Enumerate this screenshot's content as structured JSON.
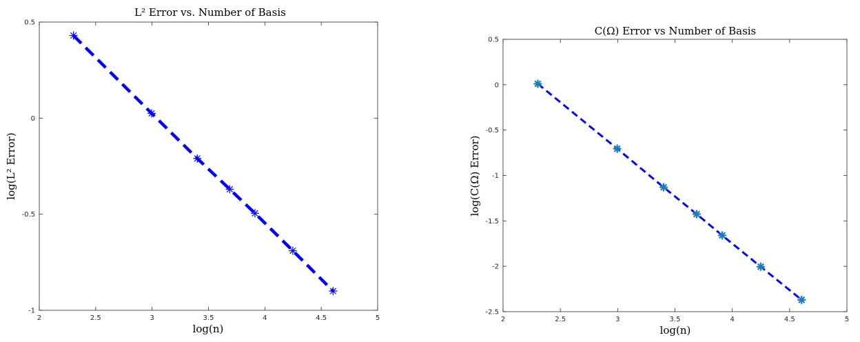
{
  "chart_data": [
    {
      "type": "line",
      "title": "L² Error vs. Number of Basis",
      "xlabel": "log(n)",
      "ylabel": "log(L² Error)",
      "xlim": [
        2,
        5
      ],
      "ylim": [
        -1,
        0.5
      ],
      "x_ticks": [
        "2",
        "2.5",
        "3",
        "3.5",
        "4",
        "4.5",
        "5"
      ],
      "y_ticks": [
        "0.5",
        "0",
        "-0.5",
        "-1"
      ],
      "grid": false,
      "series": [
        {
          "line_style": "dashed",
          "marker": "asterisk",
          "color": "#0000ff",
          "marker_color": "#0000ff",
          "x": [
            2.303,
            2.996,
            3.401,
            3.689,
            3.912,
            4.248,
            4.605
          ],
          "y": [
            0.43,
            0.025,
            -0.21,
            -0.37,
            -0.495,
            -0.69,
            -0.9
          ]
        }
      ]
    },
    {
      "type": "line",
      "title": "C(Ω) Error vs Number of Basis",
      "xlabel": "log(n)",
      "ylabel": "log(C(Ω) Error)",
      "xlim": [
        2,
        5
      ],
      "ylim": [
        -2.5,
        0.5
      ],
      "x_ticks": [
        "2",
        "2.5",
        "3",
        "3.5",
        "4",
        "4.5",
        "5"
      ],
      "y_ticks": [
        "0.5",
        "0",
        "-0.5",
        "-1",
        "-1.5",
        "-2",
        "-2.5"
      ],
      "grid": false,
      "series": [
        {
          "line_style": "dashed",
          "marker": "asterisk",
          "color": "#0000ff",
          "marker_color": "#1a7fb5",
          "x": [
            2.303,
            2.996,
            3.401,
            3.689,
            3.912,
            4.248,
            4.605
          ],
          "y": [
            0.01,
            -0.705,
            -1.13,
            -1.425,
            -1.66,
            -2.005,
            -2.37
          ]
        }
      ]
    }
  ]
}
